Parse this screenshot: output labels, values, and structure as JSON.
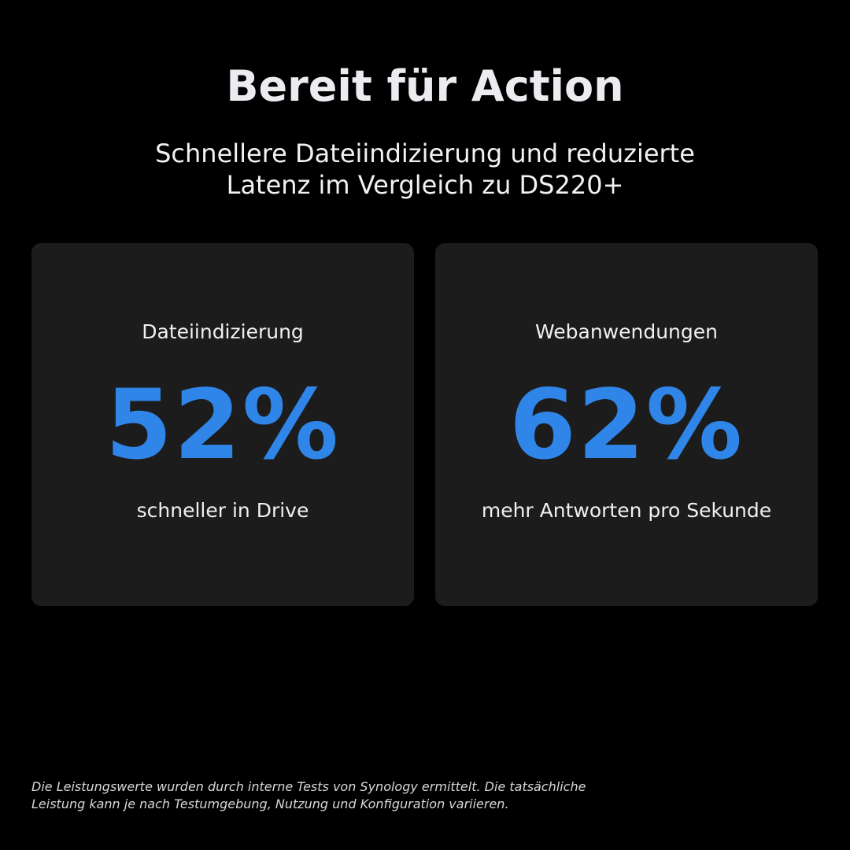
{
  "header": {
    "title": "Bereit für Action",
    "subtitle": [
      "Schnellere Dateiindizierung und reduzierte",
      "Latenz im Vergleich zu DS220+"
    ]
  },
  "cards": [
    {
      "label": "Dateiindizierung",
      "value": "52%",
      "caption": "schneller in Drive"
    },
    {
      "label": "Webanwendungen",
      "value": "62%",
      "caption": "mehr Antworten pro Sekunde"
    }
  ],
  "footnote": [
    "Die Leistungswerte wurden durch interne Tests von Synology ermittelt. Die tatsächliche",
    "Leistung kann je nach Testumgebung, Nutzung und Konfiguration variieren."
  ]
}
